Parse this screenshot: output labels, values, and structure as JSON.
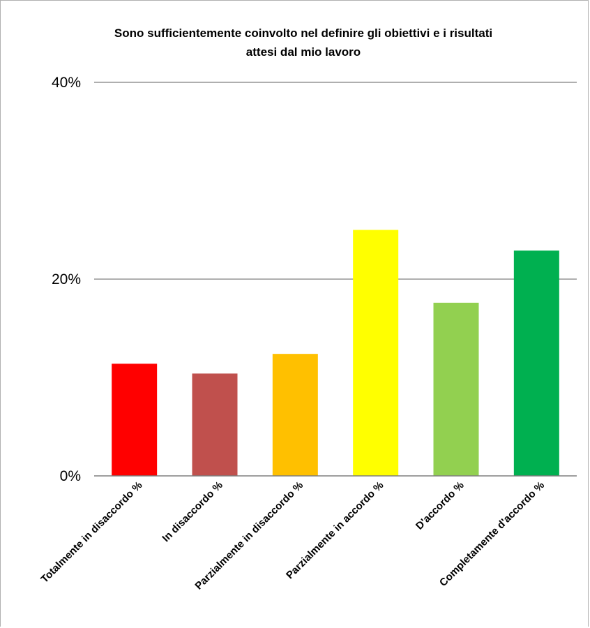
{
  "chart_data": {
    "type": "bar",
    "title_lines": [
      "Sono sufficientemente coinvolto nel definire gli obiettivi e i risultati",
      "attesi dal mio lavoro"
    ],
    "categories": [
      "Totalmente in disaccordo %",
      "In disaccordo %",
      "Parzialmente in disaccordo %",
      "Parzialmente in accordo %",
      "D'accordo %",
      "Completamente d'accordo %"
    ],
    "values": [
      11.4,
      10.4,
      12.4,
      25.0,
      17.6,
      22.9
    ],
    "colors": [
      "#FF0000",
      "#C0504D",
      "#FFC000",
      "#FFFF00",
      "#92D050",
      "#00B050"
    ],
    "ylim": [
      0,
      40
    ],
    "yticks": [
      0,
      20,
      40
    ],
    "ytick_labels": [
      "0%",
      "20%",
      "40%"
    ],
    "grid": true,
    "legend": "none"
  }
}
